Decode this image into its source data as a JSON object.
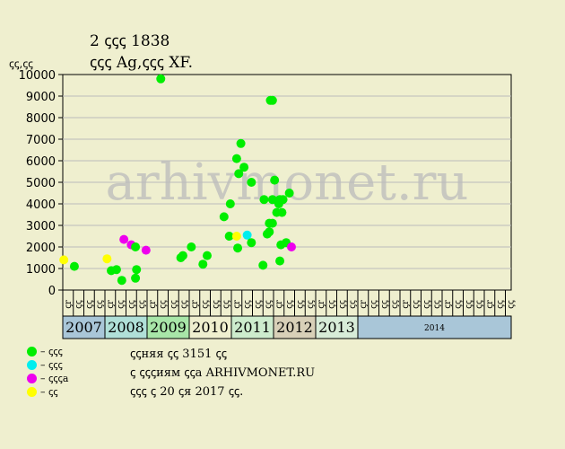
{
  "header": {
    "title_line1": "2 ꞔꞔꞔ 1838",
    "title_line2": "ꞔꞔꞔ Ag,ꞔꞔꞔ XF.",
    "y_unit": "ꞔꞔ,ꞔꞔ"
  },
  "watermark": "arhivmonet.ru",
  "legend": [
    {
      "label": "– ꞔꞔꞔ",
      "color": "#00ee00"
    },
    {
      "label": "– ꞔꞔꞔ",
      "color": "#00eeee"
    },
    {
      "label": "– ꞔꞔꞔa",
      "color": "#ee00ee"
    },
    {
      "label": "– ꞔꞔ",
      "color": "#ffff00"
    }
  ],
  "notes": [
    "ꞔꞔняя ꞔꞔ 3151 ꞔꞔ",
    "ꞔ ꞔꞔꞔиям ꞔꞔa ARHIVMONET.RU",
    "ꞔꞔꞔ ꞔ 20 ꞔя 2017 ꞔꞔ."
  ],
  "chart_data": {
    "type": "scatter",
    "ylabel": "ꞔꞔ,ꞔꞔ",
    "ylim": [
      0,
      10000
    ],
    "yticks": [
      0,
      1000,
      2000,
      3000,
      4000,
      5000,
      6000,
      7000,
      8000,
      9000,
      10000
    ],
    "grid": "horizontal",
    "quarter_labels": [
      "ꞔr",
      "ꞔꞔ",
      "ꞔꞔ",
      "ꞔꞔ"
    ],
    "years": [
      {
        "label": "2007",
        "color": "#a9c6d8"
      },
      {
        "label": "2008",
        "color": "#b0e0d8"
      },
      {
        "label": "2009",
        "color": "#a8e6a8"
      },
      {
        "label": "2010",
        "color": "#efefcf"
      },
      {
        "label": "2011",
        "color": "#cdeccd"
      },
      {
        "label": "2012",
        "color": "#d8d0b8"
      },
      {
        "label": "2013",
        "color": "#d8ecd8"
      },
      {
        "label": "2014",
        "color": "#a9c6d8"
      }
    ],
    "points": [
      {
        "x": 0.1,
        "y": 1400,
        "color": "#ffff00"
      },
      {
        "x": 1.1,
        "y": 1100,
        "color": "#00ee00"
      },
      {
        "x": 4.2,
        "y": 1450,
        "color": "#ffff00"
      },
      {
        "x": 4.6,
        "y": 900,
        "color": "#00ee00"
      },
      {
        "x": 5.1,
        "y": 950,
        "color": "#00ee00"
      },
      {
        "x": 5.6,
        "y": 450,
        "color": "#00ee00"
      },
      {
        "x": 5.8,
        "y": 2350,
        "color": "#ee00ee"
      },
      {
        "x": 6.5,
        "y": 2100,
        "color": "#ee00ee"
      },
      {
        "x": 6.9,
        "y": 550,
        "color": "#00ee00"
      },
      {
        "x": 6.9,
        "y": 2000,
        "color": "#00ee00"
      },
      {
        "x": 7.0,
        "y": 950,
        "color": "#00ee00"
      },
      {
        "x": 7.9,
        "y": 1850,
        "color": "#ee00ee"
      },
      {
        "x": 9.3,
        "y": 9800,
        "color": "#00ee00"
      },
      {
        "x": 11.2,
        "y": 1500,
        "color": "#00ee00"
      },
      {
        "x": 11.4,
        "y": 1600,
        "color": "#00ee00"
      },
      {
        "x": 12.2,
        "y": 2000,
        "color": "#00ee00"
      },
      {
        "x": 13.3,
        "y": 1200,
        "color": "#00ee00"
      },
      {
        "x": 13.7,
        "y": 1600,
        "color": "#00ee00"
      },
      {
        "x": 15.3,
        "y": 3400,
        "color": "#00ee00"
      },
      {
        "x": 15.8,
        "y": 2500,
        "color": "#00ee00"
      },
      {
        "x": 15.9,
        "y": 4000,
        "color": "#00ee00"
      },
      {
        "x": 16.5,
        "y": 2500,
        "color": "#ffff00"
      },
      {
        "x": 16.5,
        "y": 6100,
        "color": "#00ee00"
      },
      {
        "x": 16.6,
        "y": 1950,
        "color": "#00ee00"
      },
      {
        "x": 16.7,
        "y": 5400,
        "color": "#00ee00"
      },
      {
        "x": 16.9,
        "y": 6800,
        "color": "#00ee00"
      },
      {
        "x": 17.2,
        "y": 5700,
        "color": "#00ee00"
      },
      {
        "x": 17.5,
        "y": 2550,
        "color": "#00eeee"
      },
      {
        "x": 17.9,
        "y": 5000,
        "color": "#00ee00"
      },
      {
        "x": 17.9,
        "y": 2200,
        "color": "#00ee00"
      },
      {
        "x": 19.0,
        "y": 1150,
        "color": "#00ee00"
      },
      {
        "x": 19.1,
        "y": 4200,
        "color": "#00ee00"
      },
      {
        "x": 19.4,
        "y": 2600,
        "color": "#00ee00"
      },
      {
        "x": 19.6,
        "y": 2700,
        "color": "#00ee00"
      },
      {
        "x": 19.6,
        "y": 3100,
        "color": "#00ee00"
      },
      {
        "x": 19.7,
        "y": 8800,
        "color": "#00ee00"
      },
      {
        "x": 19.9,
        "y": 8800,
        "color": "#00ee00"
      },
      {
        "x": 19.9,
        "y": 3100,
        "color": "#00ee00"
      },
      {
        "x": 19.9,
        "y": 4200,
        "color": "#00ee00"
      },
      {
        "x": 20.1,
        "y": 5100,
        "color": "#00ee00"
      },
      {
        "x": 20.3,
        "y": 3600,
        "color": "#00ee00"
      },
      {
        "x": 20.5,
        "y": 4000,
        "color": "#00ee00"
      },
      {
        "x": 20.6,
        "y": 4200,
        "color": "#00ee00"
      },
      {
        "x": 20.6,
        "y": 1350,
        "color": "#00ee00"
      },
      {
        "x": 20.7,
        "y": 2100,
        "color": "#00ee00"
      },
      {
        "x": 20.8,
        "y": 3600,
        "color": "#00ee00"
      },
      {
        "x": 20.9,
        "y": 4200,
        "color": "#00ee00"
      },
      {
        "x": 21.2,
        "y": 2200,
        "color": "#00ee00"
      },
      {
        "x": 21.5,
        "y": 4500,
        "color": "#00ee00"
      },
      {
        "x": 21.7,
        "y": 2000,
        "color": "#ee00ee"
      }
    ]
  }
}
